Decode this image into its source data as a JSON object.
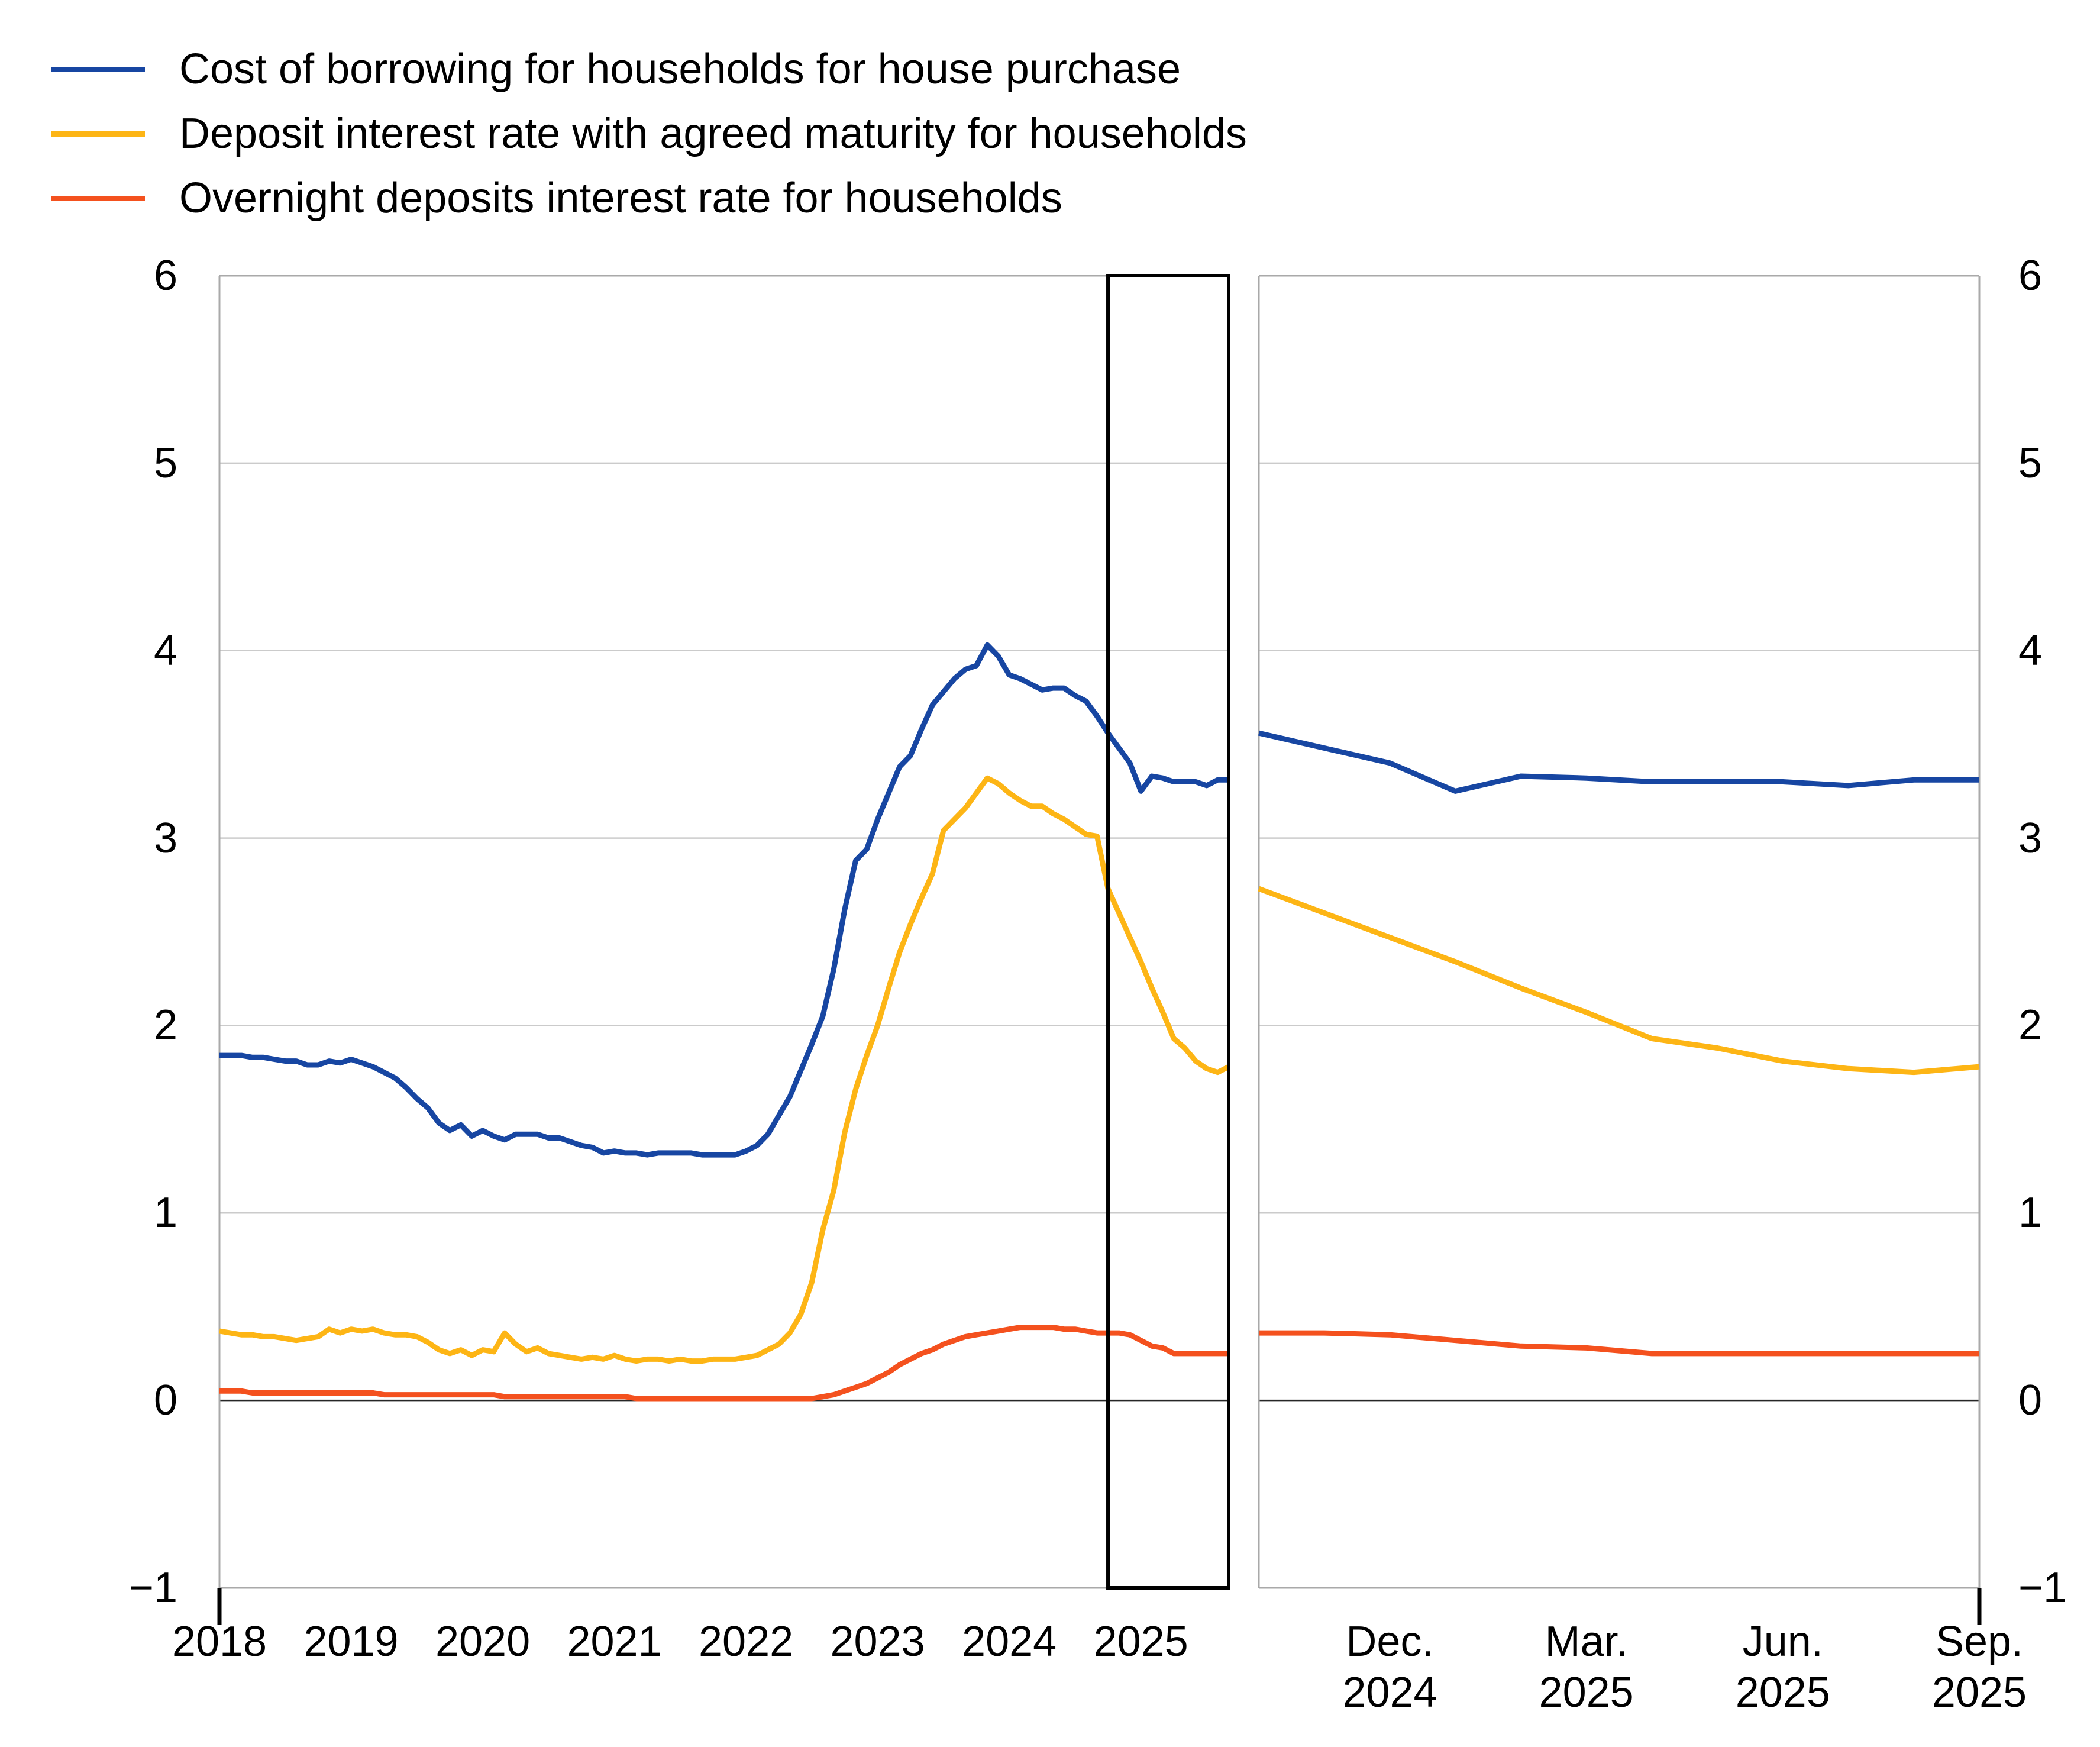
{
  "legend": {
    "items": [
      {
        "label": "Cost of borrowing for households for house purchase",
        "color": "#1746A2"
      },
      {
        "label": "Deposit interest rate with agreed maturity for households",
        "color": "#FDB515"
      },
      {
        "label": "Overnight deposits interest rate for households",
        "color": "#F4511E"
      }
    ]
  },
  "axes_style": {
    "grid_color": "#CBCBCB",
    "zero_line_color": "#262626",
    "border_color": "#A9A9A9",
    "highlight_box_color": "#000000",
    "tick_color": "#000000"
  },
  "chart_data": [
    {
      "panel": "full_history",
      "type": "line",
      "title": "",
      "x_unit": "month",
      "x_start": "2018-01",
      "x_end": "2025-09",
      "x_tick_labels": [
        "2018",
        "2019",
        "2020",
        "2021",
        "2022",
        "2023",
        "2024",
        "2025"
      ],
      "x_tick_month_index": [
        0,
        12,
        24,
        36,
        48,
        60,
        72,
        84
      ],
      "ylim": [
        -1,
        6
      ],
      "y_tick_values": [
        6,
        5,
        4,
        3,
        2,
        1,
        0,
        -1
      ],
      "y_tick_labels": [
        "6",
        "5",
        "4",
        "3",
        "2",
        "1",
        "0",
        "−1"
      ],
      "grid": true,
      "legend_position": "top-left",
      "highlight_box": {
        "from": "2024-10",
        "to": "2025-09",
        "from_month_index": 81,
        "to_month_index": 92
      },
      "series": [
        {
          "name": "Cost of borrowing for households for house purchase",
          "color": "#1746A2",
          "values": [
            1.84,
            1.84,
            1.84,
            1.83,
            1.83,
            1.82,
            1.81,
            1.81,
            1.79,
            1.79,
            1.81,
            1.8,
            1.82,
            1.8,
            1.78,
            1.75,
            1.72,
            1.67,
            1.61,
            1.56,
            1.48,
            1.44,
            1.47,
            1.41,
            1.44,
            1.41,
            1.39,
            1.42,
            1.42,
            1.42,
            1.4,
            1.4,
            1.38,
            1.36,
            1.35,
            1.32,
            1.33,
            1.32,
            1.32,
            1.31,
            1.32,
            1.32,
            1.32,
            1.32,
            1.31,
            1.31,
            1.31,
            1.31,
            1.33,
            1.36,
            1.42,
            1.52,
            1.62,
            1.76,
            1.9,
            2.05,
            2.3,
            2.62,
            2.88,
            2.94,
            3.1,
            3.24,
            3.38,
            3.44,
            3.58,
            3.71,
            3.78,
            3.85,
            3.9,
            3.92,
            4.03,
            3.97,
            3.87,
            3.85,
            3.82,
            3.79,
            3.8,
            3.8,
            3.76,
            3.73,
            3.65,
            3.56,
            3.48,
            3.4,
            3.25,
            3.33,
            3.32,
            3.3,
            3.3,
            3.3,
            3.28,
            3.31,
            3.31
          ]
        },
        {
          "name": "Deposit interest rate with agreed maturity for households",
          "color": "#FDB515",
          "values": [
            0.37,
            0.36,
            0.35,
            0.35,
            0.34,
            0.34,
            0.33,
            0.32,
            0.33,
            0.34,
            0.38,
            0.36,
            0.38,
            0.37,
            0.38,
            0.36,
            0.35,
            0.35,
            0.34,
            0.31,
            0.27,
            0.25,
            0.27,
            0.24,
            0.27,
            0.26,
            0.36,
            0.3,
            0.26,
            0.28,
            0.25,
            0.24,
            0.23,
            0.22,
            0.23,
            0.22,
            0.24,
            0.22,
            0.21,
            0.22,
            0.22,
            0.21,
            0.22,
            0.21,
            0.21,
            0.22,
            0.22,
            0.22,
            0.23,
            0.24,
            0.27,
            0.3,
            0.36,
            0.46,
            0.63,
            0.91,
            1.12,
            1.43,
            1.66,
            1.84,
            2.0,
            2.2,
            2.39,
            2.54,
            2.68,
            2.81,
            3.04,
            3.1,
            3.16,
            3.24,
            3.32,
            3.29,
            3.24,
            3.2,
            3.17,
            3.17,
            3.13,
            3.1,
            3.06,
            3.02,
            3.01,
            2.73,
            2.6,
            2.47,
            2.34,
            2.2,
            2.07,
            1.93,
            1.88,
            1.81,
            1.77,
            1.75,
            1.78
          ]
        },
        {
          "name": "Overnight deposits interest rate for households",
          "color": "#F4511E",
          "values": [
            0.05,
            0.05,
            0.05,
            0.04,
            0.04,
            0.04,
            0.04,
            0.04,
            0.04,
            0.04,
            0.04,
            0.04,
            0.04,
            0.04,
            0.04,
            0.03,
            0.03,
            0.03,
            0.03,
            0.03,
            0.03,
            0.03,
            0.03,
            0.03,
            0.03,
            0.03,
            0.02,
            0.02,
            0.02,
            0.02,
            0.02,
            0.02,
            0.02,
            0.02,
            0.02,
            0.02,
            0.02,
            0.02,
            0.01,
            0.01,
            0.01,
            0.01,
            0.01,
            0.01,
            0.01,
            0.01,
            0.01,
            0.01,
            0.01,
            0.01,
            0.01,
            0.01,
            0.01,
            0.01,
            0.01,
            0.02,
            0.03,
            0.05,
            0.07,
            0.09,
            0.12,
            0.15,
            0.19,
            0.22,
            0.25,
            0.27,
            0.3,
            0.32,
            0.34,
            0.35,
            0.36,
            0.37,
            0.38,
            0.39,
            0.39,
            0.39,
            0.39,
            0.38,
            0.38,
            0.37,
            0.36,
            0.36,
            0.36,
            0.35,
            0.32,
            0.29,
            0.28,
            0.25,
            0.25,
            0.25,
            0.25,
            0.25,
            0.25
          ]
        }
      ]
    },
    {
      "panel": "zoom_oct2024_sep2025",
      "type": "line",
      "title": "",
      "x_unit": "month",
      "x_start": "2024-10",
      "x_end": "2025-09",
      "x_tick_labels": [
        "Dec.\n2024",
        "Mar.\n2025",
        "Jun.\n2025",
        "Sep.\n2025"
      ],
      "x_tick_month_index": [
        2,
        5,
        8,
        11
      ],
      "ylim": [
        -1,
        6
      ],
      "y_tick_values": [
        6,
        5,
        4,
        3,
        2,
        1,
        0,
        -1
      ],
      "y_tick_labels": [
        "6",
        "5",
        "4",
        "3",
        "2",
        "1",
        "0",
        "−1"
      ],
      "grid": true,
      "series": [
        {
          "name": "Cost of borrowing for households for house purchase",
          "color": "#1746A2",
          "values": [
            3.56,
            3.48,
            3.4,
            3.25,
            3.33,
            3.32,
            3.3,
            3.3,
            3.3,
            3.28,
            3.31,
            3.31
          ]
        },
        {
          "name": "Deposit interest rate with agreed maturity for households",
          "color": "#FDB515",
          "values": [
            2.73,
            2.6,
            2.47,
            2.34,
            2.2,
            2.07,
            1.93,
            1.88,
            1.81,
            1.77,
            1.75,
            1.78
          ]
        },
        {
          "name": "Overnight deposits interest rate for households",
          "color": "#F4511E",
          "values": [
            0.36,
            0.36,
            0.35,
            0.32,
            0.29,
            0.28,
            0.25,
            0.25,
            0.25,
            0.25,
            0.25,
            0.25
          ]
        }
      ]
    }
  ]
}
